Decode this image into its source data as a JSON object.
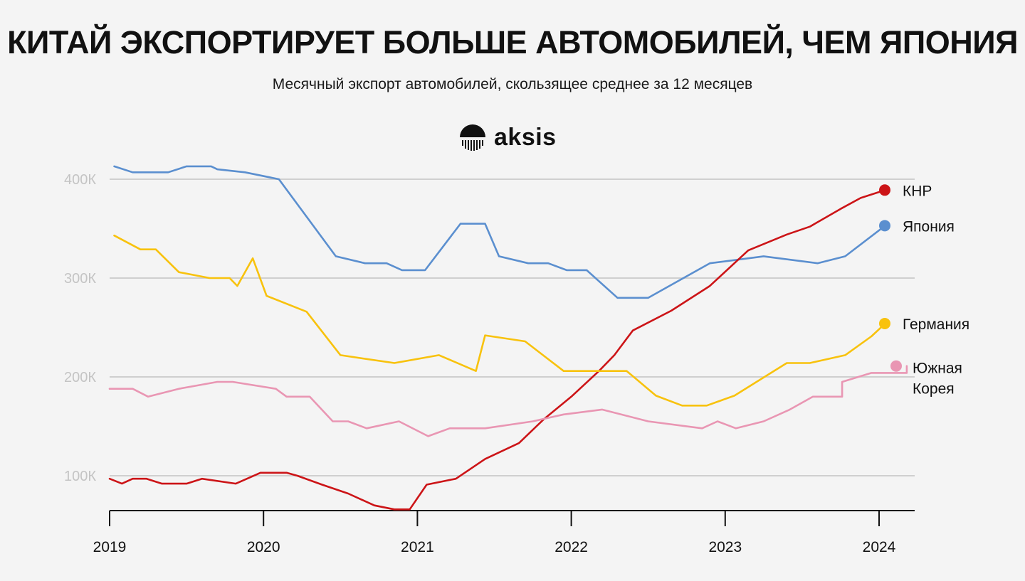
{
  "title": "КИТАЙ ЭКСПОРТИРУЕТ БОЛЬШЕ АВТОМОБИЛЕЙ, ЧЕМ ЯПОНИЯ",
  "subtitle": "Месячный экспорт автомобилей, скользящее среднее за 12 месяцев",
  "brand": {
    "name": "aksis",
    "icon": "aksis-logo-icon"
  },
  "colors": {
    "background": "#f4f4f4",
    "china": "#cc1417",
    "japan": "#5b8fcf",
    "germany": "#f8c20d",
    "korea": "#e996b3"
  },
  "chart_data": {
    "type": "line",
    "title": "КИТАЙ ЭКСПОРТИРУЕТ БОЛЬШЕ АВТОМОБИЛЕЙ, ЧЕМ ЯПОНИЯ",
    "subtitle": "Месячный экспорт автомобилей, скользящее среднее за 12 месяцев",
    "xlabel": "",
    "ylabel": "",
    "xlim": [
      2019.0,
      2024.2
    ],
    "ylim": [
      65,
      410
    ],
    "grid": true,
    "legend_placement": "right (end of lines)",
    "x_ticks": [
      {
        "value": 2019,
        "label": "2019"
      },
      {
        "value": 2020,
        "label": "2020"
      },
      {
        "value": 2021,
        "label": "2021"
      },
      {
        "value": 2022,
        "label": "2022"
      },
      {
        "value": 2023,
        "label": "2023"
      },
      {
        "value": 2024,
        "label": "2024"
      }
    ],
    "y_ticks": [
      {
        "value": 100,
        "label": "100К"
      },
      {
        "value": 200,
        "label": "200К"
      },
      {
        "value": 300,
        "label": "300К"
      },
      {
        "value": 400,
        "label": "400К"
      }
    ],
    "series": [
      {
        "id": "japan",
        "name": "Япония",
        "color": "#5b8fcf",
        "points": [
          [
            2019.03,
            413
          ],
          [
            2019.15,
            407
          ],
          [
            2019.38,
            407
          ],
          [
            2019.5,
            413
          ],
          [
            2019.66,
            413
          ],
          [
            2019.7,
            410
          ],
          [
            2019.88,
            407
          ],
          [
            2020.1,
            400
          ],
          [
            2020.47,
            322
          ],
          [
            2020.66,
            315
          ],
          [
            2020.8,
            315
          ],
          [
            2020.9,
            308
          ],
          [
            2021.05,
            308
          ],
          [
            2021.28,
            355
          ],
          [
            2021.44,
            355
          ],
          [
            2021.53,
            322
          ],
          [
            2021.72,
            315
          ],
          [
            2021.85,
            315
          ],
          [
            2021.97,
            308
          ],
          [
            2022.1,
            308
          ],
          [
            2022.3,
            280
          ],
          [
            2022.5,
            280
          ],
          [
            2022.9,
            315
          ],
          [
            2023.25,
            322
          ],
          [
            2023.6,
            315
          ],
          [
            2023.78,
            322
          ],
          [
            2024.04,
            353
          ]
        ]
      },
      {
        "id": "china",
        "name": "КНР",
        "color": "#cc1417",
        "points": [
          [
            2019.0,
            97
          ],
          [
            2019.08,
            92
          ],
          [
            2019.15,
            97
          ],
          [
            2019.24,
            97
          ],
          [
            2019.34,
            92
          ],
          [
            2019.5,
            92
          ],
          [
            2019.6,
            97
          ],
          [
            2019.82,
            92
          ],
          [
            2019.98,
            103
          ],
          [
            2020.15,
            103
          ],
          [
            2020.22,
            100
          ],
          [
            2020.38,
            91
          ],
          [
            2020.55,
            82
          ],
          [
            2020.72,
            70
          ],
          [
            2020.85,
            66
          ],
          [
            2020.95,
            66
          ],
          [
            2021.06,
            91
          ],
          [
            2021.25,
            97
          ],
          [
            2021.44,
            117
          ],
          [
            2021.66,
            133
          ],
          [
            2021.82,
            157
          ],
          [
            2022.0,
            180
          ],
          [
            2022.18,
            206
          ],
          [
            2022.28,
            222
          ],
          [
            2022.4,
            247
          ],
          [
            2022.65,
            267
          ],
          [
            2022.9,
            292
          ],
          [
            2023.15,
            328
          ],
          [
            2023.4,
            344
          ],
          [
            2023.55,
            352
          ],
          [
            2023.75,
            370
          ],
          [
            2023.88,
            381
          ],
          [
            2024.04,
            389
          ]
        ]
      },
      {
        "id": "germany",
        "name": "Германия",
        "color": "#f8c20d",
        "points": [
          [
            2019.03,
            343
          ],
          [
            2019.2,
            329
          ],
          [
            2019.3,
            329
          ],
          [
            2019.45,
            306
          ],
          [
            2019.65,
            300
          ],
          [
            2019.78,
            300
          ],
          [
            2019.83,
            292
          ],
          [
            2019.93,
            320
          ],
          [
            2020.02,
            282
          ],
          [
            2020.28,
            266
          ],
          [
            2020.5,
            222
          ],
          [
            2020.85,
            214
          ],
          [
            2021.14,
            222
          ],
          [
            2021.38,
            206
          ],
          [
            2021.44,
            242
          ],
          [
            2021.7,
            236
          ],
          [
            2021.95,
            206
          ],
          [
            2022.36,
            206
          ],
          [
            2022.55,
            181
          ],
          [
            2022.72,
            171
          ],
          [
            2022.88,
            171
          ],
          [
            2023.06,
            181
          ],
          [
            2023.4,
            214
          ],
          [
            2023.55,
            214
          ],
          [
            2023.78,
            222
          ],
          [
            2023.95,
            241
          ],
          [
            2024.04,
            254
          ]
        ]
      },
      {
        "id": "korea",
        "name": "Южная Корея",
        "color": "#e996b3",
        "points": [
          [
            2019.0,
            188
          ],
          [
            2019.15,
            188
          ],
          [
            2019.25,
            180
          ],
          [
            2019.45,
            188
          ],
          [
            2019.7,
            195
          ],
          [
            2019.8,
            195
          ],
          [
            2020.08,
            188
          ],
          [
            2020.15,
            180
          ],
          [
            2020.3,
            180
          ],
          [
            2020.45,
            155
          ],
          [
            2020.55,
            155
          ],
          [
            2020.67,
            148
          ],
          [
            2020.88,
            155
          ],
          [
            2021.07,
            140
          ],
          [
            2021.21,
            148
          ],
          [
            2021.44,
            148
          ],
          [
            2021.75,
            155
          ],
          [
            2021.95,
            162
          ],
          [
            2022.2,
            167
          ],
          [
            2022.5,
            155
          ],
          [
            2022.85,
            148
          ],
          [
            2022.95,
            155
          ],
          [
            2023.07,
            148
          ],
          [
            2023.25,
            155
          ],
          [
            2023.42,
            167
          ],
          [
            2023.57,
            180
          ],
          [
            2023.76,
            180
          ],
          [
            2023.76,
            195
          ],
          [
            2023.95,
            204
          ],
          [
            2024.18,
            204
          ],
          [
            2024.18,
            211
          ]
        ]
      }
    ],
    "legend": [
      {
        "series": "china",
        "label": "КНР",
        "value": 389
      },
      {
        "series": "japan",
        "label": "Япония",
        "value": 353
      },
      {
        "series": "germany",
        "label": "Германия",
        "value": 254
      },
      {
        "series": "korea",
        "label_lines": [
          "Южная",
          "Корея"
        ],
        "value": 211
      }
    ]
  }
}
